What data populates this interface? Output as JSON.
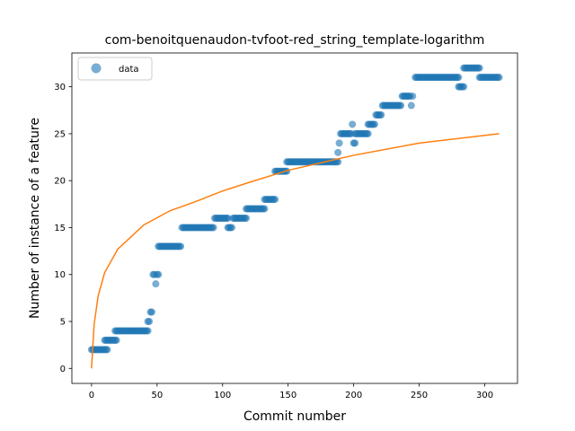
{
  "chart_data": {
    "type": "scatter",
    "title": "com-benoitquenaudon-tvfoot-red_string_template-logarithm",
    "xlabel": "Commit number",
    "ylabel": "Number of instance of a feature",
    "xlim": [
      -15,
      325
    ],
    "ylim": [
      -1.6,
      33.6
    ],
    "xticks": [
      0,
      50,
      100,
      150,
      200,
      250,
      300
    ],
    "yticks": [
      0,
      5,
      10,
      15,
      20,
      25,
      30
    ],
    "grid": false,
    "legend_position": "top-left",
    "series": [
      {
        "name": "data",
        "kind": "points",
        "color": "#1f77b4",
        "segments": [
          {
            "from": 0,
            "to": 5,
            "y": 2
          },
          {
            "from": 6,
            "to": 12,
            "y": 2
          },
          {
            "from": 10,
            "to": 19,
            "y": 3
          },
          {
            "from": 18,
            "to": 43,
            "y": 4
          },
          {
            "from": 43,
            "to": 44,
            "y": 5
          },
          {
            "from": 45,
            "to": 46,
            "y": 6
          },
          {
            "from": 47,
            "to": 48,
            "y": 10
          },
          {
            "from": 49,
            "to": 49,
            "y": 9
          },
          {
            "from": 50,
            "to": 51,
            "y": 10
          },
          {
            "from": 51,
            "to": 68,
            "y": 13
          },
          {
            "from": 69,
            "to": 93,
            "y": 15
          },
          {
            "from": 94,
            "to": 104,
            "y": 16
          },
          {
            "from": 104,
            "to": 107,
            "y": 15
          },
          {
            "from": 108,
            "to": 118,
            "y": 16
          },
          {
            "from": 118,
            "to": 132,
            "y": 17
          },
          {
            "from": 132,
            "to": 140,
            "y": 18
          },
          {
            "from": 140,
            "to": 149,
            "y": 21
          },
          {
            "from": 149,
            "to": 188,
            "y": 22
          },
          {
            "from": 188,
            "to": 188,
            "y": 23
          },
          {
            "from": 189,
            "to": 189,
            "y": 24
          },
          {
            "from": 190,
            "to": 198,
            "y": 25
          },
          {
            "from": 199,
            "to": 199,
            "y": 26
          },
          {
            "from": 200,
            "to": 201,
            "y": 24
          },
          {
            "from": 201,
            "to": 211,
            "y": 25
          },
          {
            "from": 211,
            "to": 216,
            "y": 26
          },
          {
            "from": 217,
            "to": 221,
            "y": 27
          },
          {
            "from": 222,
            "to": 236,
            "y": 28
          },
          {
            "from": 237,
            "to": 243,
            "y": 29
          },
          {
            "from": 244,
            "to": 244,
            "y": 28
          },
          {
            "from": 245,
            "to": 245,
            "y": 29
          },
          {
            "from": 247,
            "to": 280,
            "y": 31
          },
          {
            "from": 280,
            "to": 284,
            "y": 30
          },
          {
            "from": 284,
            "to": 296,
            "y": 32
          },
          {
            "from": 296,
            "to": 311,
            "y": 31
          }
        ]
      },
      {
        "name": "",
        "kind": "fit-line",
        "color": "#ff7f0e",
        "model": "logarithmic",
        "x_range": [
          0,
          311
        ],
        "points": [
          [
            0,
            0
          ],
          [
            2,
            4.7
          ],
          [
            5,
            7.7
          ],
          [
            10,
            10.2
          ],
          [
            20,
            12.7
          ],
          [
            40,
            15.3
          ],
          [
            60,
            16.8
          ],
          [
            80,
            17.8
          ],
          [
            100,
            18.9
          ],
          [
            120,
            19.8
          ],
          [
            150,
            21.1
          ],
          [
            200,
            22.7
          ],
          [
            250,
            24.0
          ],
          [
            311,
            25.0
          ]
        ]
      }
    ]
  }
}
